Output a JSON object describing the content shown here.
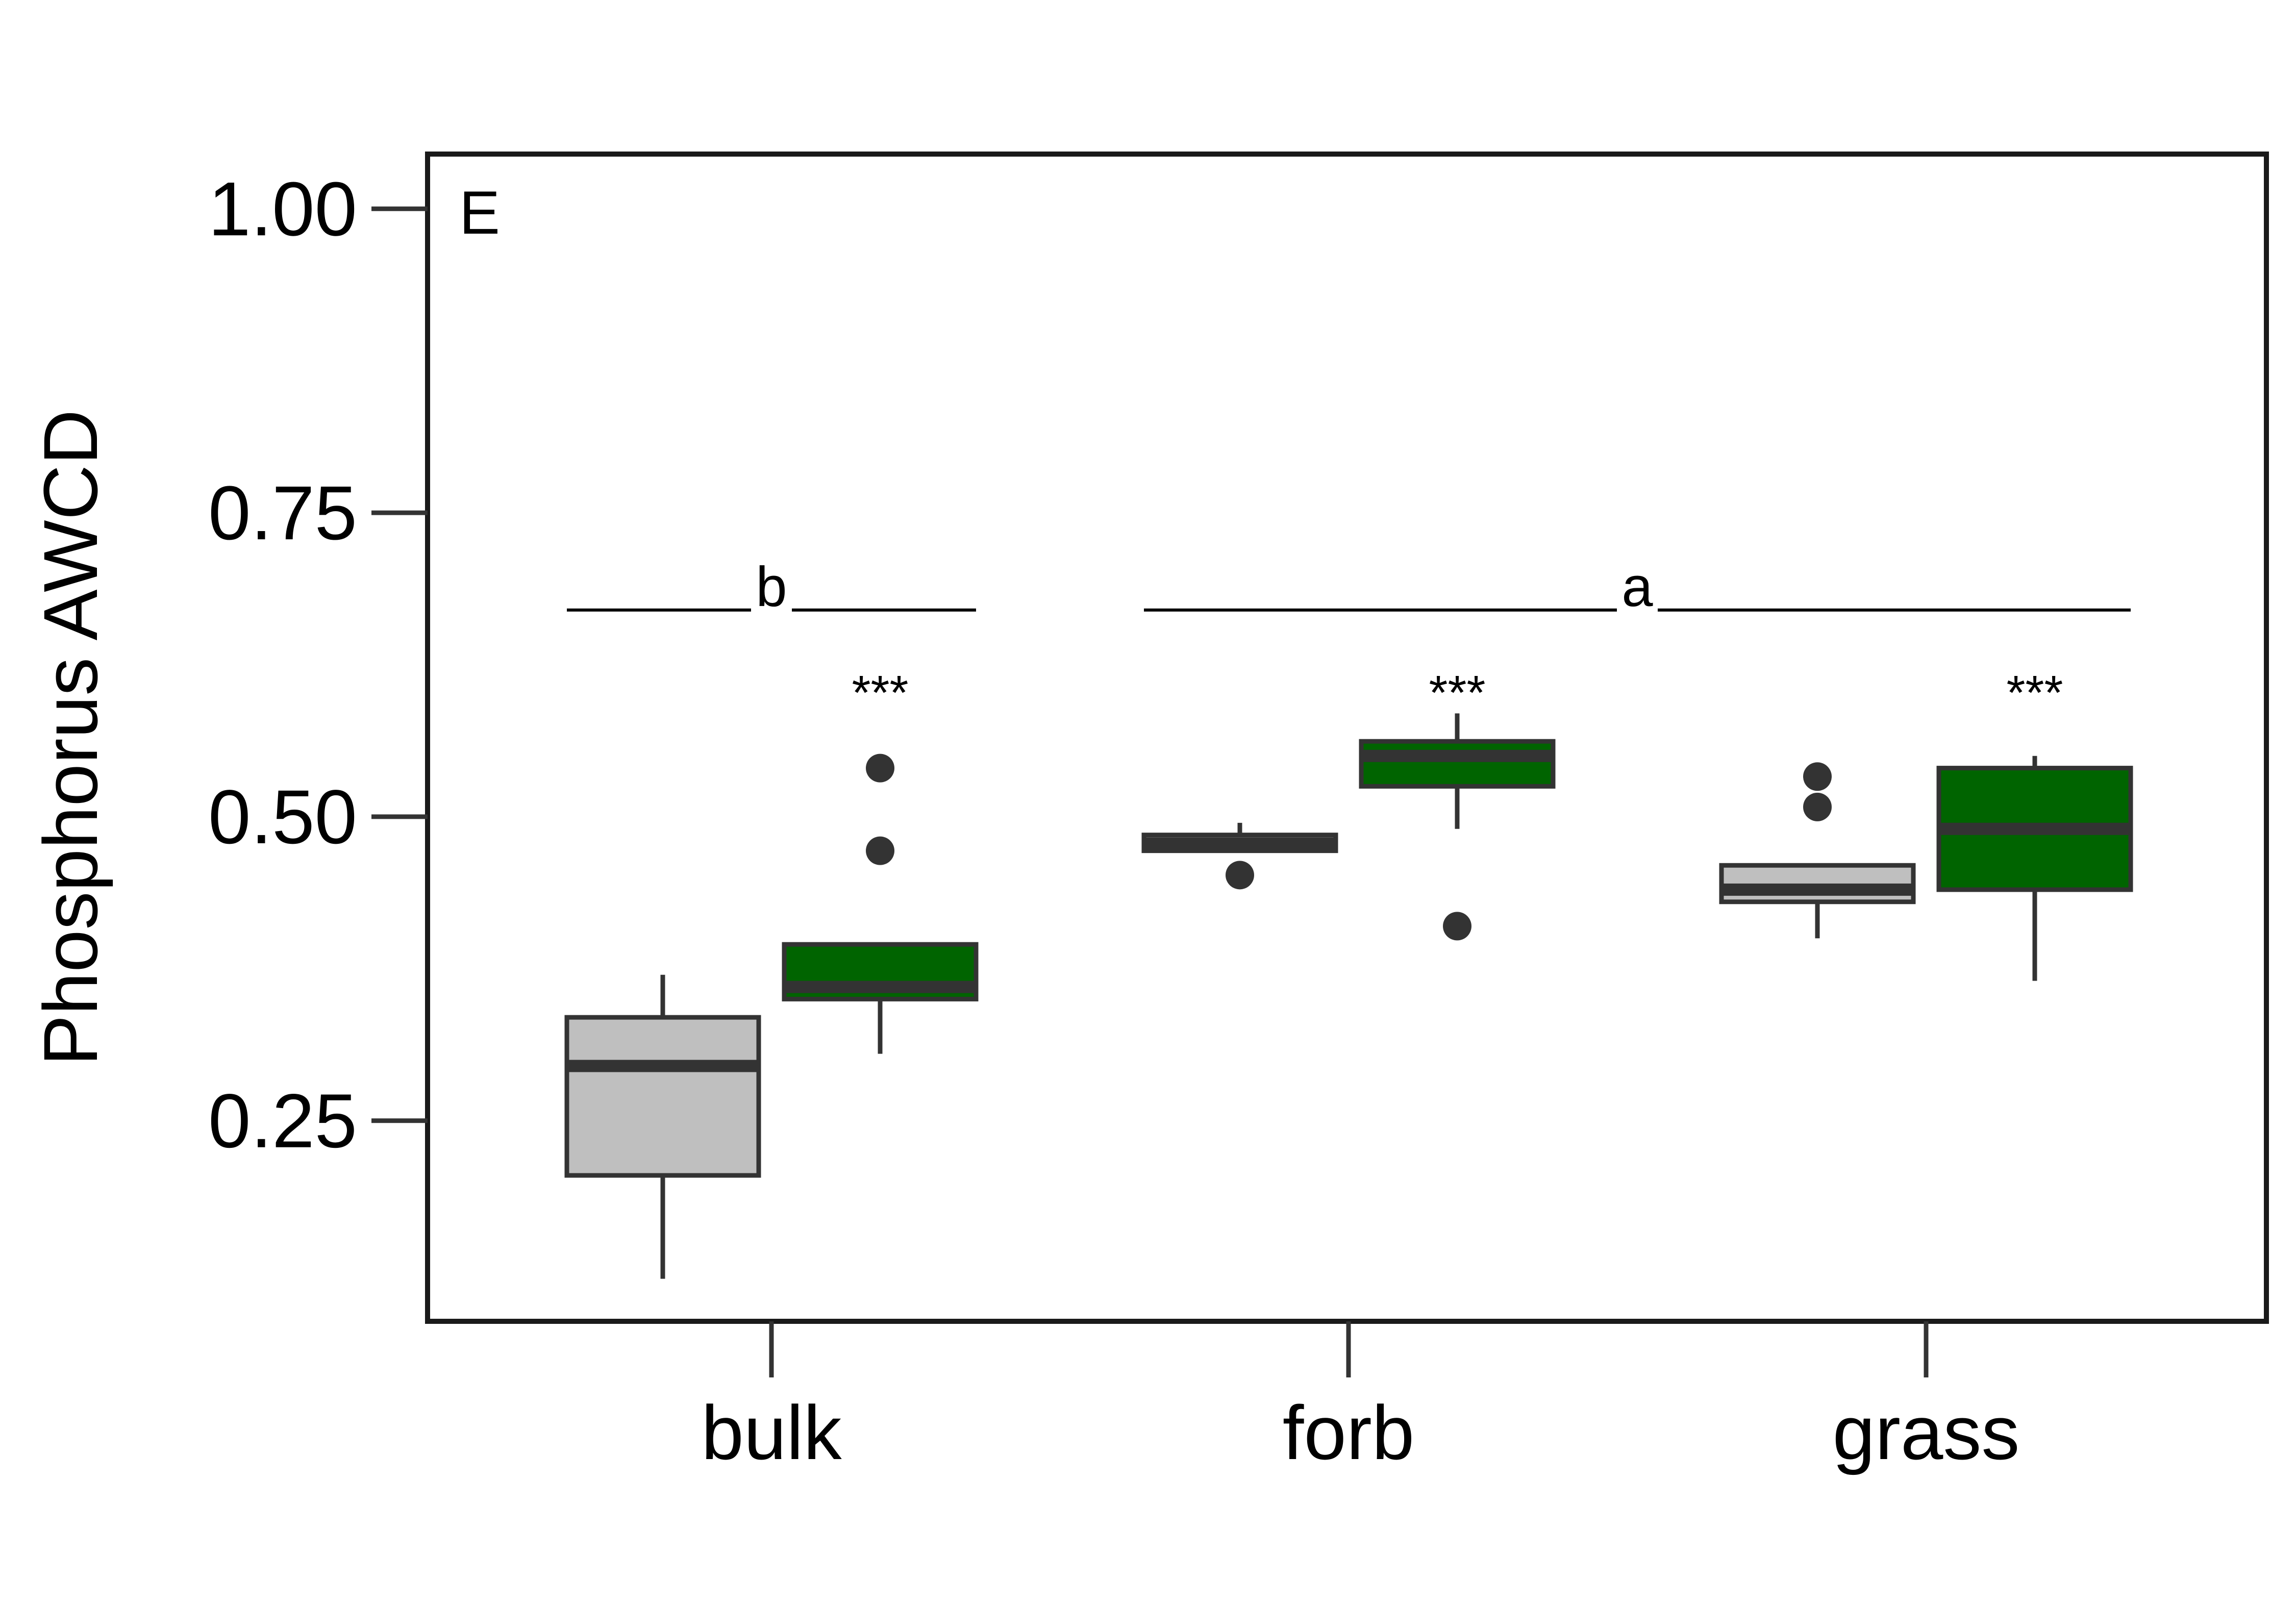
{
  "chart_data": {
    "type": "box",
    "panel_label": "E",
    "xlabel": "",
    "ylabel": "Phosphorus AWCD",
    "ylim": [
      0.085,
      1.045
    ],
    "yticks": [
      0.25,
      0.5,
      0.75,
      1.0
    ],
    "ytick_labels": [
      "0.25",
      "0.50",
      "0.75",
      "1.00"
    ],
    "categories": [
      "bulk",
      "forb",
      "grass"
    ],
    "colors": {
      "light": "#bfbfbf",
      "dark": "#006400",
      "stroke": "#333333"
    },
    "boxes": [
      {
        "category": "bulk",
        "fill": "light",
        "whisker_low": 0.12,
        "q1": 0.205,
        "median": 0.295,
        "q3": 0.335,
        "whisker_high": 0.37,
        "outliers": []
      },
      {
        "category": "bulk",
        "fill": "dark",
        "whisker_low": 0.305,
        "q1": 0.35,
        "median": 0.36,
        "q3": 0.395,
        "whisker_high": 0.395,
        "outliers": [
          0.472,
          0.54
        ],
        "sig": "***"
      },
      {
        "category": "forb",
        "fill": "light",
        "whisker_low": 0.472,
        "q1": 0.472,
        "median": 0.478,
        "q3": 0.485,
        "whisker_high": 0.495,
        "outliers": [
          0.452
        ]
      },
      {
        "category": "forb",
        "fill": "dark",
        "whisker_low": 0.49,
        "q1": 0.525,
        "median": 0.55,
        "q3": 0.562,
        "whisker_high": 0.585,
        "outliers": [
          0.41
        ],
        "sig": "***"
      },
      {
        "category": "grass",
        "fill": "light",
        "whisker_low": 0.4,
        "q1": 0.43,
        "median": 0.44,
        "q3": 0.46,
        "whisker_high": 0.46,
        "outliers": [
          0.508,
          0.533
        ]
      },
      {
        "category": "grass",
        "fill": "dark",
        "whisker_low": 0.365,
        "q1": 0.44,
        "median": 0.49,
        "q3": 0.54,
        "whisker_high": 0.55,
        "outliers": [],
        "sig": "***"
      }
    ],
    "group_letters": [
      {
        "label": "b",
        "y": 0.67,
        "from_box": 0,
        "to_box": 1
      },
      {
        "label": "a",
        "y": 0.67,
        "from_box": 2,
        "to_box": 5
      }
    ]
  }
}
